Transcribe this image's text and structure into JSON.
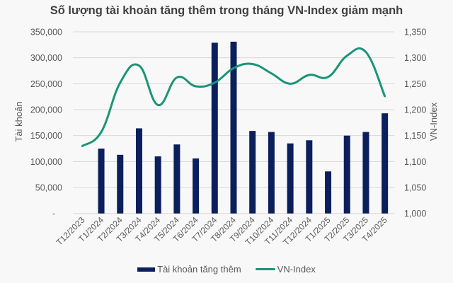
{
  "chart_data": {
    "type": "bar+line",
    "title": "Số lượng tài khoản tăng thêm trong tháng VN-Index giảm mạnh",
    "xlabel": "",
    "ylabel": "Tài khoản",
    "y2label": "VN-Index",
    "ylim": [
      0,
      350000
    ],
    "y2lim": [
      1000,
      1350
    ],
    "yticks": [
      "-",
      "50,000",
      "100,000",
      "150,000",
      "200,000",
      "250,000",
      "300,000",
      "350,000"
    ],
    "y2ticks": [
      "1,000",
      "1,050",
      "1,100",
      "1,150",
      "1,200",
      "1,250",
      "1,300",
      "1,350"
    ],
    "grid": true,
    "legend_position": "bottom",
    "categories": [
      "T12/2023",
      "T1/2024",
      "T2/2024",
      "T3/2024",
      "T4/2024",
      "T5/2024",
      "T6/2024",
      "T7/2024",
      "T8/2024",
      "T9/2024",
      "T10/2024",
      "T11/2024",
      "T12/2024",
      "T1/2025",
      "T2/2025",
      "T3/2025",
      "T4/2025"
    ],
    "series": [
      {
        "name": "Tài khoản tăng thêm",
        "type": "bar",
        "axis": "left",
        "color": "#0b1f5c",
        "values": [
          null,
          125000,
          113000,
          164000,
          110000,
          133000,
          106000,
          329000,
          331000,
          159000,
          157000,
          135000,
          141000,
          81000,
          150000,
          157000,
          193000
        ]
      },
      {
        "name": "VN-Index",
        "type": "line",
        "axis": "right",
        "color": "#1a9478",
        "values": [
          1130,
          1157,
          1252,
          1285,
          1209,
          1262,
          1245,
          1252,
          1280,
          1288,
          1270,
          1250,
          1267,
          1263,
          1304,
          1311,
          1226
        ]
      }
    ]
  },
  "legend": {
    "bar_label": "Tài khoản tăng thêm",
    "line_label": "VN-Index"
  }
}
